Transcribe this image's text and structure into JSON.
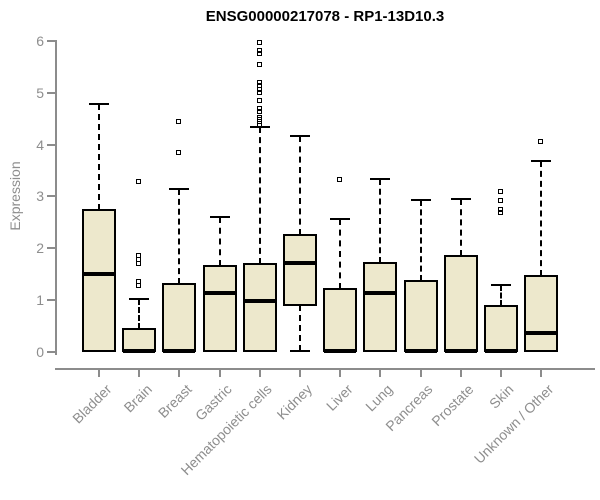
{
  "chart_data": {
    "type": "boxplot",
    "title": "ENSG00000217078 - RP1-13D10.3",
    "ylabel": "Expression",
    "xlabel": "",
    "ylim": [
      0,
      6
    ],
    "yticks": [
      0,
      1,
      2,
      3,
      4,
      5,
      6
    ],
    "grid": "off",
    "legend": "none",
    "categories": [
      "Bladder",
      "Brain",
      "Breast",
      "Gastric",
      "Hematopoietic cells",
      "Kidney",
      "Liver",
      "Lung",
      "Pancreas",
      "Prostate",
      "Skin",
      "Unknown / Other"
    ],
    "boxes": [
      {
        "category": "Bladder",
        "whisker_low": 0.02,
        "q1": 0.02,
        "median": 1.51,
        "q3": 2.73,
        "whisker_high": 4.78,
        "outliers": []
      },
      {
        "category": "Brain",
        "whisker_low": 0.02,
        "q1": 0.02,
        "median": 0.02,
        "q3": 0.45,
        "whisker_high": 1.03,
        "outliers": [
          3.28,
          1.85,
          1.77,
          1.69,
          1.35,
          1.28
        ]
      },
      {
        "category": "Breast",
        "whisker_low": 0.02,
        "q1": 0.02,
        "median": 0.02,
        "q3": 1.32,
        "whisker_high": 3.14,
        "outliers": [
          4.44,
          3.84
        ]
      },
      {
        "category": "Gastric",
        "whisker_low": 0.02,
        "q1": 0.02,
        "median": 1.13,
        "q3": 1.66,
        "whisker_high": 2.6,
        "outliers": []
      },
      {
        "category": "Hematopoietic cells",
        "whisker_low": 0.02,
        "q1": 0.02,
        "median": 0.98,
        "q3": 1.7,
        "whisker_high": 4.33,
        "outliers": [
          5.96,
          5.8,
          5.75,
          5.53,
          5.19,
          5.13,
          5.06,
          4.99,
          4.84,
          4.68,
          4.63,
          4.52,
          4.48,
          4.44,
          4.36
        ]
      },
      {
        "category": "Kidney",
        "whisker_low": 0.02,
        "q1": 0.9,
        "median": 1.71,
        "q3": 2.26,
        "whisker_high": 4.16,
        "outliers": []
      },
      {
        "category": "Liver",
        "whisker_low": 0.02,
        "q1": 0.02,
        "median": 0.02,
        "q3": 1.21,
        "whisker_high": 2.56,
        "outliers": [
          3.31
        ]
      },
      {
        "category": "Lung",
        "whisker_low": 0.02,
        "q1": 0.02,
        "median": 1.13,
        "q3": 1.72,
        "whisker_high": 3.33,
        "outliers": []
      },
      {
        "category": "Pancreas",
        "whisker_low": 0.02,
        "q1": 0.02,
        "median": 0.02,
        "q3": 1.37,
        "whisker_high": 2.94,
        "outliers": []
      },
      {
        "category": "Prostate",
        "whisker_low": 0.02,
        "q1": 0.02,
        "median": 0.02,
        "q3": 1.85,
        "whisker_high": 2.96,
        "outliers": []
      },
      {
        "category": "Skin",
        "whisker_low": 0.02,
        "q1": 0.02,
        "median": 0.02,
        "q3": 0.88,
        "whisker_high": 1.3,
        "outliers": [
          3.08,
          2.92,
          2.73,
          2.68
        ]
      },
      {
        "category": "Unknown / Other",
        "whisker_low": 0.02,
        "q1": 0.02,
        "median": 0.37,
        "q3": 1.47,
        "whisker_high": 3.68,
        "outliers": [
          4.05
        ]
      }
    ],
    "style": {
      "background": "#FFFFFF",
      "box_fill": "#EDE8CC",
      "box_border": "#000000",
      "median_color": "#000000",
      "whisker_style": "dashed",
      "outlier_marker": "open-square",
      "axis_color": "#8C8C8C",
      "tick_label_color": "#8E8E8E",
      "title_color": "#000000"
    }
  }
}
